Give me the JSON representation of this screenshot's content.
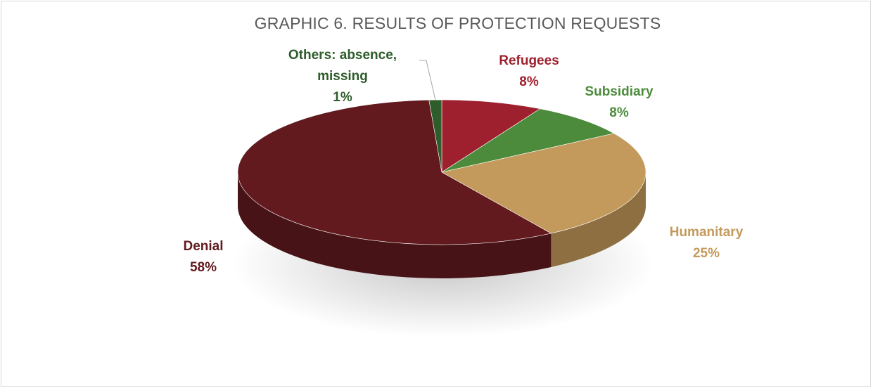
{
  "chart_data": {
    "type": "pie",
    "title": "GRAPHIC 6. RESULTS OF PROTECTION REQUESTS",
    "slices": [
      {
        "name": "Refugees",
        "lines": [
          "Refugees"
        ],
        "percent_label": "8%",
        "value": 8,
        "color": "#9e1f2d",
        "label_color": "#9e1f2d"
      },
      {
        "name": "Subsidiary",
        "lines": [
          "Subsidiary"
        ],
        "percent_label": "8%",
        "value": 8,
        "color": "#4b8b3b",
        "label_color": "#4b8b3b"
      },
      {
        "name": "Humanitary",
        "lines": [
          "Humanitary"
        ],
        "percent_label": "25%",
        "value": 25,
        "color": "#c49a5c",
        "label_color": "#c49a5c"
      },
      {
        "name": "Denial",
        "lines": [
          "Denial"
        ],
        "percent_label": "58%",
        "value": 58,
        "color": "#621a1f",
        "label_color": "#621a1f"
      },
      {
        "name": "Others: absence, missing",
        "lines": [
          "Others: absence,",
          "missing"
        ],
        "percent_label": "1%",
        "value": 1,
        "color": "#2e5c2a",
        "label_color": "#2e5c2a"
      }
    ]
  }
}
